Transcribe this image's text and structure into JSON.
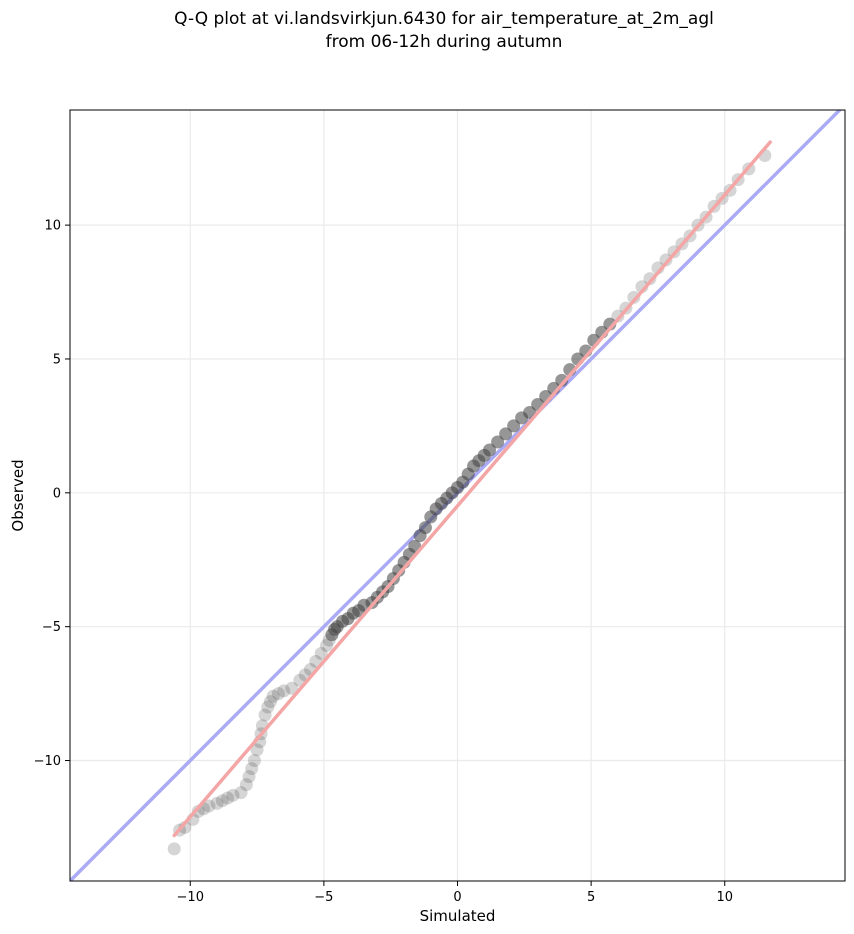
{
  "figure": {
    "title_line1": "Q-Q plot at vi.landsvirkjun.6430 for air_temperature_at_2m_agl",
    "title_line2": "from 06-12h during autumn"
  },
  "chart_data": {
    "type": "scatter",
    "xlabel": "Simulated",
    "ylabel": "Observed",
    "xlim": [
      -14.5,
      14.5
    ],
    "ylim": [
      -14.5,
      14.3
    ],
    "xticks": [
      -10,
      -5,
      0,
      5,
      10
    ],
    "yticks": [
      -10,
      -5,
      0,
      5,
      10
    ],
    "xtick_labels": [
      "−10",
      "−5",
      "0",
      "5",
      "10"
    ],
    "ytick_labels": [
      "−10",
      "−5",
      "0",
      "5",
      "10"
    ],
    "grid": true,
    "series": [
      {
        "kind": "quantile-points",
        "color": "#404040",
        "x": [
          -10.6,
          -10.4,
          -10.2,
          -9.9,
          -9.7,
          -9.5,
          -9.3,
          -9.0,
          -8.8,
          -8.6,
          -8.4,
          -8.1,
          -7.9,
          -7.8,
          -7.7,
          -7.6,
          -7.5,
          -7.4,
          -7.35,
          -7.3,
          -7.2,
          -7.1,
          -7.0,
          -6.9,
          -6.7,
          -6.5,
          -6.2,
          -5.9,
          -5.7,
          -5.5,
          -5.3,
          -5.1,
          -4.9,
          -4.8,
          -4.7,
          -4.6,
          -4.5,
          -4.3,
          -4.1,
          -3.9,
          -3.7,
          -3.5,
          -3.2,
          -3.0,
          -2.8,
          -2.6,
          -2.4,
          -2.2,
          -2.0,
          -1.8,
          -1.6,
          -1.4,
          -1.2,
          -1.0,
          -0.8,
          -0.6,
          -0.4,
          -0.2,
          0.0,
          0.2,
          0.4,
          0.6,
          0.8,
          1.0,
          1.2,
          1.5,
          1.8,
          2.1,
          2.4,
          2.7,
          3.0,
          3.3,
          3.6,
          3.9,
          4.2,
          4.5,
          4.8,
          5.1,
          5.4,
          5.7,
          6.0,
          6.3,
          6.6,
          6.9,
          7.2,
          7.5,
          7.8,
          8.1,
          8.4,
          8.7,
          9.0,
          9.3,
          9.6,
          9.9,
          10.2,
          10.5,
          10.9,
          11.5
        ],
        "y": [
          -13.3,
          -12.6,
          -12.5,
          -12.2,
          -11.9,
          -11.8,
          -11.7,
          -11.6,
          -11.5,
          -11.4,
          -11.3,
          -11.2,
          -10.9,
          -10.6,
          -10.3,
          -10.0,
          -9.6,
          -9.3,
          -9.0,
          -8.7,
          -8.3,
          -8.0,
          -7.8,
          -7.6,
          -7.5,
          -7.4,
          -7.3,
          -7.0,
          -6.8,
          -6.6,
          -6.3,
          -6.0,
          -5.7,
          -5.5,
          -5.3,
          -5.1,
          -5.0,
          -4.8,
          -4.7,
          -4.5,
          -4.4,
          -4.2,
          -4.1,
          -3.9,
          -3.7,
          -3.5,
          -3.2,
          -2.9,
          -2.6,
          -2.3,
          -2.0,
          -1.6,
          -1.3,
          -0.9,
          -0.6,
          -0.4,
          -0.2,
          0.0,
          0.2,
          0.4,
          0.7,
          1.0,
          1.2,
          1.4,
          1.6,
          1.9,
          2.2,
          2.5,
          2.8,
          3.0,
          3.3,
          3.6,
          3.9,
          4.2,
          4.6,
          5.0,
          5.3,
          5.7,
          6.0,
          6.3,
          6.6,
          6.9,
          7.3,
          7.7,
          8.0,
          8.4,
          8.7,
          9.0,
          9.3,
          9.6,
          10.0,
          10.3,
          10.7,
          11.0,
          11.3,
          11.7,
          12.1,
          12.6
        ]
      },
      {
        "kind": "one-to-one-line",
        "color": "#aaaaf5",
        "x": [
          -14.5,
          14.5
        ],
        "y": [
          -14.5,
          14.5
        ]
      },
      {
        "kind": "fitted-line",
        "color": "#f4a6a6",
        "x": [
          -10.6,
          11.7
        ],
        "y": [
          -12.8,
          13.1
        ]
      }
    ]
  }
}
